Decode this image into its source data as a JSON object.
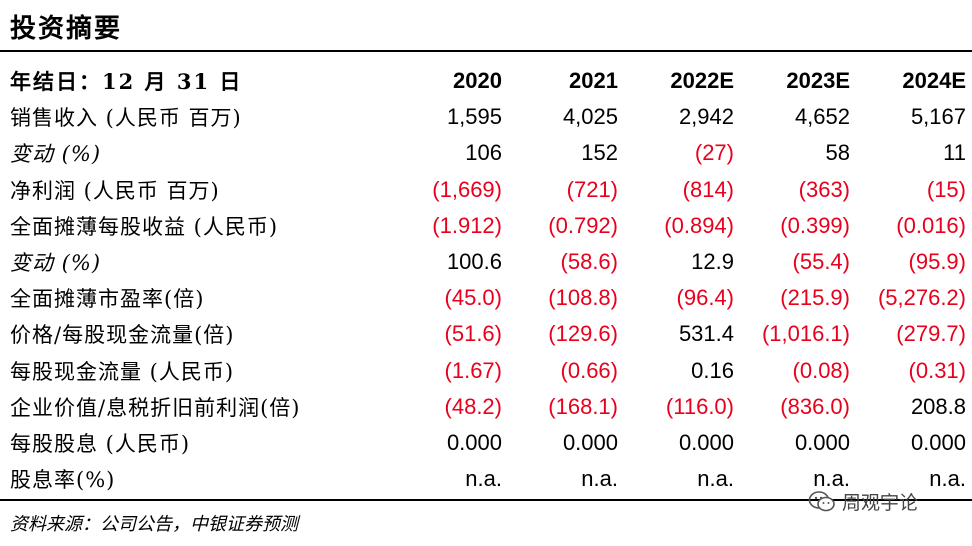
{
  "title": "投资摘要",
  "header": {
    "label": "年结日：12 月 31 日",
    "years": [
      "2020",
      "2021",
      "2022E",
      "2023E",
      "2024E"
    ]
  },
  "rows": [
    {
      "label": "销售收入 (人民币 百万)",
      "italic": false,
      "values": [
        "1,595",
        "4,025",
        "2,942",
        "4,652",
        "5,167"
      ]
    },
    {
      "label": "变动 (%)",
      "italic": true,
      "values": [
        "106",
        "152",
        "(27)",
        "58",
        "11"
      ]
    },
    {
      "label": "净利润 (人民币 百万)",
      "italic": false,
      "values": [
        "(1,669)",
        "(721)",
        "(814)",
        "(363)",
        "(15)"
      ]
    },
    {
      "label": "全面摊薄每股收益 (人民币)",
      "italic": false,
      "values": [
        "(1.912)",
        "(0.792)",
        "(0.894)",
        "(0.399)",
        "(0.016)"
      ]
    },
    {
      "label": "变动 (%)",
      "italic": true,
      "values": [
        "100.6",
        "(58.6)",
        "12.9",
        "(55.4)",
        "(95.9)"
      ]
    },
    {
      "label": "全面摊薄市盈率(倍)",
      "italic": false,
      "values": [
        "(45.0)",
        "(108.8)",
        "(96.4)",
        "(215.9)",
        "(5,276.2)"
      ]
    },
    {
      "label": "价格/每股现金流量(倍)",
      "italic": false,
      "values": [
        "(51.6)",
        "(129.6)",
        "531.4",
        "(1,016.1)",
        "(279.7)"
      ]
    },
    {
      "label": "每股现金流量 (人民币)",
      "italic": false,
      "values": [
        "(1.67)",
        "(0.66)",
        "0.16",
        "(0.08)",
        "(0.31)"
      ]
    },
    {
      "label": "企业价值/息税折旧前利润(倍)",
      "italic": false,
      "values": [
        "(48.2)",
        "(168.1)",
        "(116.0)",
        "(836.0)",
        "208.8"
      ]
    },
    {
      "label": "每股股息 (人民币)",
      "italic": false,
      "values": [
        "0.000",
        "0.000",
        "0.000",
        "0.000",
        "0.000"
      ]
    },
    {
      "label": "股息率(%)",
      "italic": false,
      "values": [
        "n.a.",
        "n.a.",
        "n.a.",
        "n.a.",
        "n.a."
      ]
    }
  ],
  "source": "资料来源：公司公告，中银证券预测",
  "watermark": {
    "text": "周观宇论",
    "icon": "wechat-icon"
  },
  "colors": {
    "negative": "#e8001c",
    "text": "#000000",
    "rule": "#000000"
  }
}
